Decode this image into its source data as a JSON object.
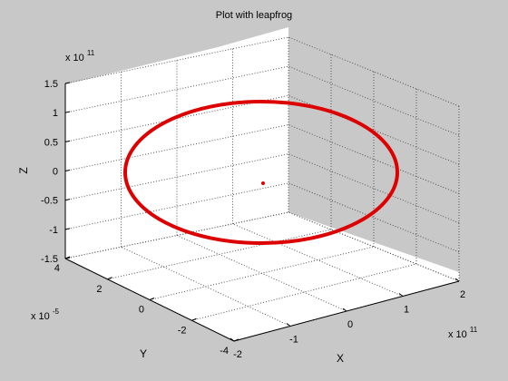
{
  "chart_data": {
    "type": "line",
    "title": "Plot with leapfrog",
    "xlabel": "X",
    "ylabel": "Y",
    "zlabel": "Z",
    "x_multiplier": {
      "base": "x 10",
      "exp": "11"
    },
    "y_multiplier": {
      "base": "x 10",
      "exp": "-5"
    },
    "z_multiplier": {
      "base": "x 10",
      "exp": "11"
    },
    "xlim": [
      -2,
      2
    ],
    "ylim": [
      -4,
      4
    ],
    "zlim": [
      -1.5,
      1.5
    ],
    "xticks": [
      "-2",
      "-1",
      "0",
      "1",
      "2"
    ],
    "yticks": [
      "-4",
      "-2",
      "0",
      "2",
      "4"
    ],
    "zticks": [
      "-1.5",
      "-1",
      "-0.5",
      "0",
      "0.5",
      "1",
      "1.5"
    ],
    "grid": true,
    "colors": {
      "series": "#dd0000",
      "axes_bg": "#ffffff",
      "figure_bg": "#c8c8c8"
    },
    "series": [
      {
        "orbit_center": [
          0,
          0,
          0
        ],
        "orbit_semi_axes": [
          1.5,
          1.1
        ],
        "orbit_tilt_deg": 35
      }
    ],
    "points": [
      {
        "x": 0,
        "y": 0,
        "z": 0
      }
    ]
  }
}
